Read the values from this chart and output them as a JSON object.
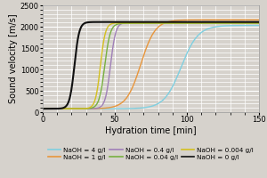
{
  "title": "",
  "xlabel": "Hydration time [min]",
  "ylabel": "Sound velocity [m/s]",
  "xlim": [
    0,
    150
  ],
  "ylim": [
    0,
    2500
  ],
  "xticks": [
    0,
    50,
    100,
    150
  ],
  "yticks": [
    0,
    500,
    1000,
    1500,
    2000,
    2500
  ],
  "background_color": "#d6d2cc",
  "plot_bg_color": "#d6d2cc",
  "grid_color": "#ffffff",
  "series": [
    {
      "label": "NaOH = 4 g/l",
      "color": "#7fcfe0",
      "midpoint": 96,
      "steepness": 0.17,
      "y_low": 80,
      "y_high": 2030,
      "lw": 1.0
    },
    {
      "label": "NaOH = 1 g/l",
      "color": "#e8963c",
      "midpoint": 68,
      "steepness": 0.2,
      "y_low": 80,
      "y_high": 2160,
      "lw": 1.0
    },
    {
      "label": "NaOH = 0.4 g/l",
      "color": "#a080b8",
      "midpoint": 47,
      "steepness": 0.55,
      "y_low": 80,
      "y_high": 2100,
      "lw": 1.0
    },
    {
      "label": "NaOH = 0.04 g/l",
      "color": "#78b040",
      "midpoint": 43,
      "steepness": 0.52,
      "y_low": 80,
      "y_high": 2080,
      "lw": 1.0
    },
    {
      "label": "NaOH = 0.004 g/l",
      "color": "#d4c020",
      "midpoint": 40,
      "steepness": 0.58,
      "y_low": 80,
      "y_high": 2090,
      "lw": 1.0
    },
    {
      "label": "NaOH = 0 g/l",
      "color": "#111111",
      "midpoint": 22,
      "steepness": 0.6,
      "y_low": 80,
      "y_high": 2110,
      "lw": 1.5
    }
  ],
  "legend_order": [
    0,
    1,
    2,
    3,
    4,
    5
  ],
  "legend_fontsize": 5.2,
  "axis_fontsize": 7,
  "tick_fontsize": 6
}
